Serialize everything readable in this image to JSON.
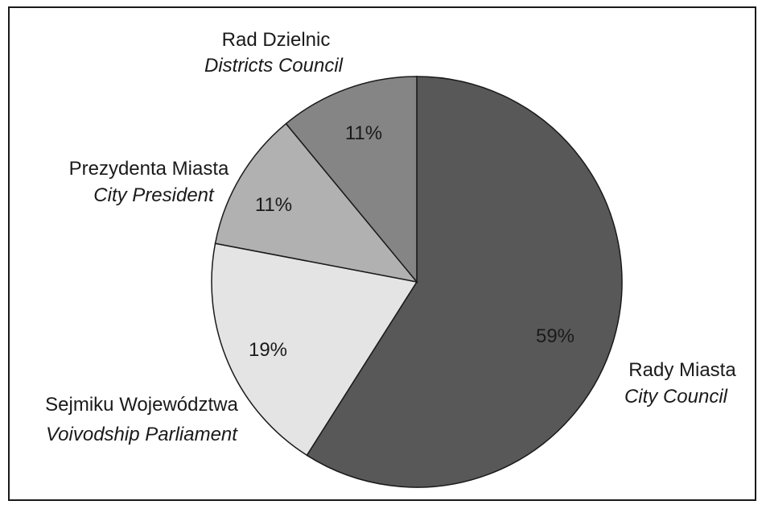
{
  "chart_data": {
    "type": "pie",
    "title": "",
    "slices": [
      {
        "pct_label": "59%",
        "value": 59,
        "label_pl": "Rady Miasta",
        "label_en": "City Council",
        "color": "#585858"
      },
      {
        "pct_label": "19%",
        "value": 19,
        "label_pl": "Sejmiku Województwa",
        "label_en": "Voivodship Parliament",
        "color": "#e4e4e4"
      },
      {
        "pct_label": "11%",
        "value": 11,
        "label_pl": "Prezydenta Miasta",
        "label_en": "City President",
        "color": "#b1b1b1"
      },
      {
        "pct_label": "11%",
        "value": 11,
        "label_pl": "Rad Dzielnic",
        "label_en": "Districts Council",
        "color": "#858585"
      }
    ]
  }
}
